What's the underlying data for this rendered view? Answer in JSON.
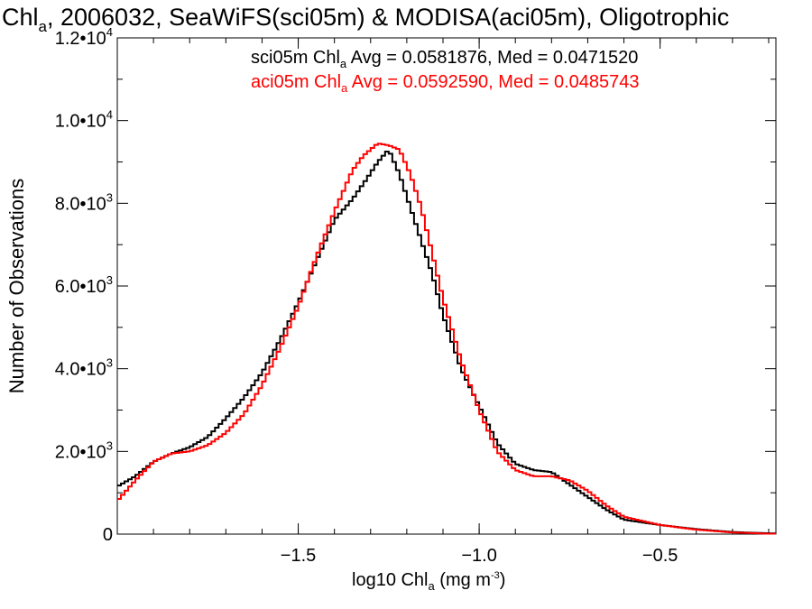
{
  "chart_data": {
    "type": "line",
    "title": {
      "prefix": "Chl",
      "sub": "a",
      "rest": ", 2006032, SeaWiFS(sci05m) & MODISA(aci05m), Oligotrophic"
    },
    "xlabel": {
      "prefix": "log10 Chl",
      "sub": "a",
      "mid": " (mg m",
      "sup": "-3",
      "end": ")"
    },
    "ylabel": "Number of Observations",
    "xlim": [
      -2.0,
      -0.18
    ],
    "ylim": [
      0,
      12000
    ],
    "x_ticks": [
      {
        "value": -1.5,
        "label": "−1.5"
      },
      {
        "value": -1.0,
        "label": "−1.0"
      },
      {
        "value": -0.5,
        "label": "−0.5"
      }
    ],
    "y_ticks": [
      {
        "value": 0,
        "mant": "0",
        "exp": ""
      },
      {
        "value": 2000,
        "mant": "2.0•10",
        "exp": "3"
      },
      {
        "value": 4000,
        "mant": "4.0•10",
        "exp": "3"
      },
      {
        "value": 6000,
        "mant": "6.0•10",
        "exp": "3"
      },
      {
        "value": 8000,
        "mant": "8.0•10",
        "exp": "3"
      },
      {
        "value": 10000,
        "mant": "1.0•10",
        "exp": "4"
      },
      {
        "value": 12000,
        "mant": "1.2•10",
        "exp": "4"
      }
    ],
    "grid": false,
    "legend_position": "top-right",
    "series": [
      {
        "name": "sci05m",
        "color": "#000000",
        "legend": {
          "pre": "sci05m Chl",
          "sub": "a",
          "post": " Avg = 0.0581876, Med = 0.0471520"
        },
        "points": [
          [
            -2.0,
            1150
          ],
          [
            -1.95,
            1400
          ],
          [
            -1.9,
            1750
          ],
          [
            -1.85,
            1950
          ],
          [
            -1.8,
            2100
          ],
          [
            -1.75,
            2350
          ],
          [
            -1.7,
            2800
          ],
          [
            -1.65,
            3300
          ],
          [
            -1.6,
            3900
          ],
          [
            -1.55,
            4700
          ],
          [
            -1.5,
            5600
          ],
          [
            -1.45,
            6600
          ],
          [
            -1.4,
            7600
          ],
          [
            -1.35,
            8100
          ],
          [
            -1.31,
            8600
          ],
          [
            -1.28,
            9000
          ],
          [
            -1.25,
            9300
          ],
          [
            -1.22,
            8700
          ],
          [
            -1.19,
            7900
          ],
          [
            -1.16,
            7100
          ],
          [
            -1.13,
            6300
          ],
          [
            -1.1,
            5300
          ],
          [
            -1.05,
            4000
          ],
          [
            -1.0,
            3100
          ],
          [
            -0.95,
            2200
          ],
          [
            -0.9,
            1700
          ],
          [
            -0.85,
            1550
          ],
          [
            -0.8,
            1500
          ],
          [
            -0.75,
            1200
          ],
          [
            -0.7,
            900
          ],
          [
            -0.65,
            600
          ],
          [
            -0.6,
            350
          ],
          [
            -0.5,
            220
          ],
          [
            -0.4,
            120
          ],
          [
            -0.3,
            50
          ],
          [
            -0.2,
            20
          ]
        ]
      },
      {
        "name": "aci05m",
        "color": "#ff0000",
        "legend": {
          "pre": "aci05m Chl",
          "sub": "a",
          "post": " Avg = 0.0592590, Med = 0.0485743"
        },
        "points": [
          [
            -2.0,
            800
          ],
          [
            -1.95,
            1300
          ],
          [
            -1.9,
            1750
          ],
          [
            -1.85,
            1950
          ],
          [
            -1.8,
            2000
          ],
          [
            -1.75,
            2150
          ],
          [
            -1.7,
            2450
          ],
          [
            -1.65,
            2900
          ],
          [
            -1.6,
            3600
          ],
          [
            -1.55,
            4500
          ],
          [
            -1.5,
            5500
          ],
          [
            -1.45,
            6700
          ],
          [
            -1.4,
            7800
          ],
          [
            -1.35,
            8800
          ],
          [
            -1.32,
            9150
          ],
          [
            -1.28,
            9450
          ],
          [
            -1.25,
            9400
          ],
          [
            -1.22,
            9300
          ],
          [
            -1.19,
            8700
          ],
          [
            -1.16,
            7900
          ],
          [
            -1.13,
            6800
          ],
          [
            -1.1,
            5700
          ],
          [
            -1.05,
            4200
          ],
          [
            -1.0,
            3000
          ],
          [
            -0.95,
            2000
          ],
          [
            -0.9,
            1550
          ],
          [
            -0.85,
            1400
          ],
          [
            -0.8,
            1400
          ],
          [
            -0.75,
            1300
          ],
          [
            -0.7,
            1050
          ],
          [
            -0.65,
            700
          ],
          [
            -0.6,
            420
          ],
          [
            -0.5,
            220
          ],
          [
            -0.4,
            110
          ],
          [
            -0.3,
            40
          ],
          [
            -0.2,
            10
          ]
        ]
      }
    ]
  }
}
